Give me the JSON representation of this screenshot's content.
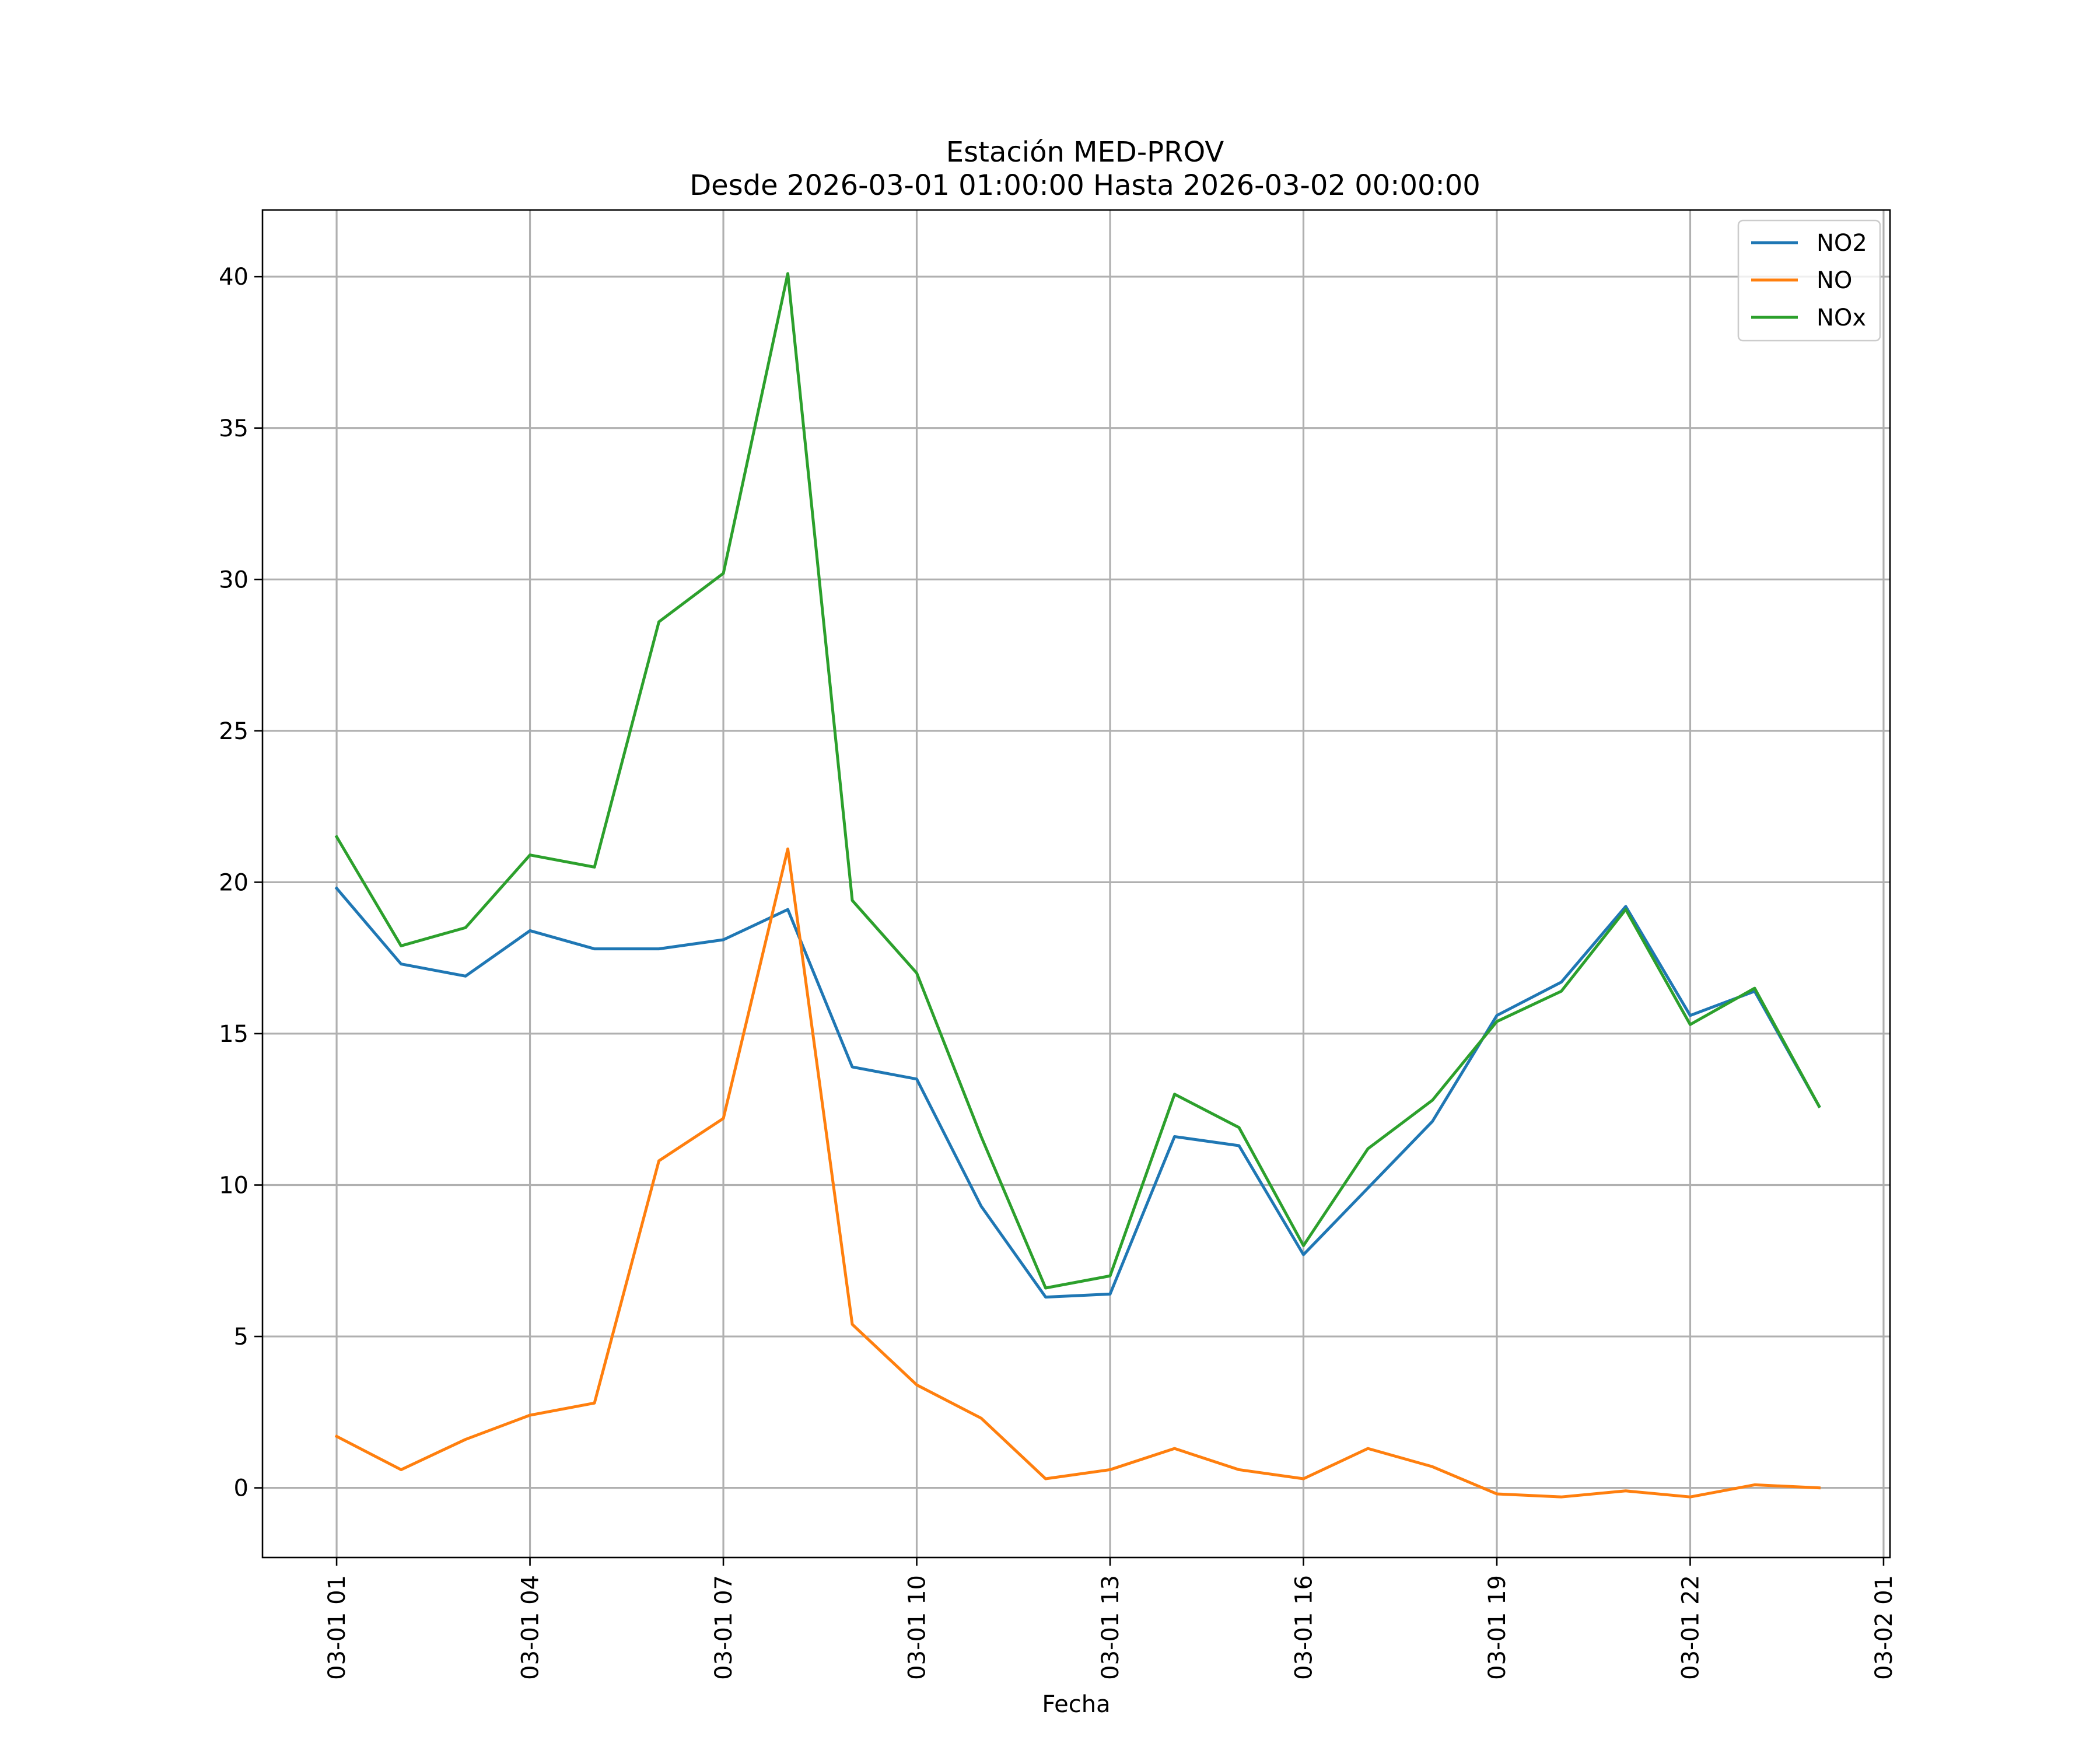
{
  "chart_data": {
    "type": "line",
    "title": [
      "Estación MED-PROV",
      "Desde 2026-03-01 01:00:00 Hasta 2026-03-02 00:00:00"
    ],
    "xlabel": "Fecha",
    "ylabel": "",
    "x_hours": [
      1,
      2,
      3,
      4,
      5,
      6,
      7,
      8,
      9,
      10,
      11,
      12,
      13,
      14,
      15,
      16,
      17,
      18,
      19,
      20,
      21,
      22,
      23,
      24
    ],
    "xlim": [
      -0.15,
      25.1
    ],
    "ylim": [
      -2.3,
      42.2
    ],
    "xticks": [
      {
        "value": 1,
        "label": "03-01 01"
      },
      {
        "value": 4,
        "label": "03-01 04"
      },
      {
        "value": 7,
        "label": "03-01 07"
      },
      {
        "value": 10,
        "label": "03-01 10"
      },
      {
        "value": 13,
        "label": "03-01 13"
      },
      {
        "value": 16,
        "label": "03-01 16"
      },
      {
        "value": 19,
        "label": "03-01 19"
      },
      {
        "value": 22,
        "label": "03-01 22"
      },
      {
        "value": 25,
        "label": "03-02 01"
      }
    ],
    "yticks": [
      {
        "value": 0,
        "label": "0"
      },
      {
        "value": 5,
        "label": "5"
      },
      {
        "value": 10,
        "label": "10"
      },
      {
        "value": 15,
        "label": "15"
      },
      {
        "value": 20,
        "label": "20"
      },
      {
        "value": 25,
        "label": "25"
      },
      {
        "value": 30,
        "label": "30"
      },
      {
        "value": 35,
        "label": "35"
      },
      {
        "value": 40,
        "label": "40"
      }
    ],
    "grid": true,
    "legend_position": "top-right",
    "series": [
      {
        "name": "NO2",
        "color": "#1f77b4",
        "values": [
          19.8,
          17.3,
          16.9,
          18.4,
          17.8,
          17.8,
          18.1,
          19.1,
          13.9,
          13.5,
          9.3,
          6.3,
          6.4,
          11.6,
          11.3,
          7.7,
          9.9,
          12.1,
          15.6,
          16.7,
          19.2,
          15.6,
          16.4,
          12.6
        ]
      },
      {
        "name": "NO",
        "color": "#ff7f0e",
        "values": [
          1.7,
          0.6,
          1.6,
          2.4,
          2.8,
          10.8,
          12.2,
          21.1,
          5.4,
          3.4,
          2.3,
          0.3,
          0.6,
          1.3,
          0.6,
          0.3,
          1.3,
          0.7,
          -0.2,
          -0.3,
          -0.1,
          -0.3,
          0.1,
          0.0
        ]
      },
      {
        "name": "NOx",
        "color": "#2ca02c",
        "values": [
          21.5,
          17.9,
          18.5,
          20.9,
          20.5,
          28.6,
          30.2,
          40.1,
          19.4,
          17.0,
          11.6,
          6.6,
          7.0,
          13.0,
          11.9,
          8.0,
          11.2,
          12.8,
          15.4,
          16.4,
          19.1,
          15.3,
          16.5,
          12.6
        ]
      }
    ]
  }
}
